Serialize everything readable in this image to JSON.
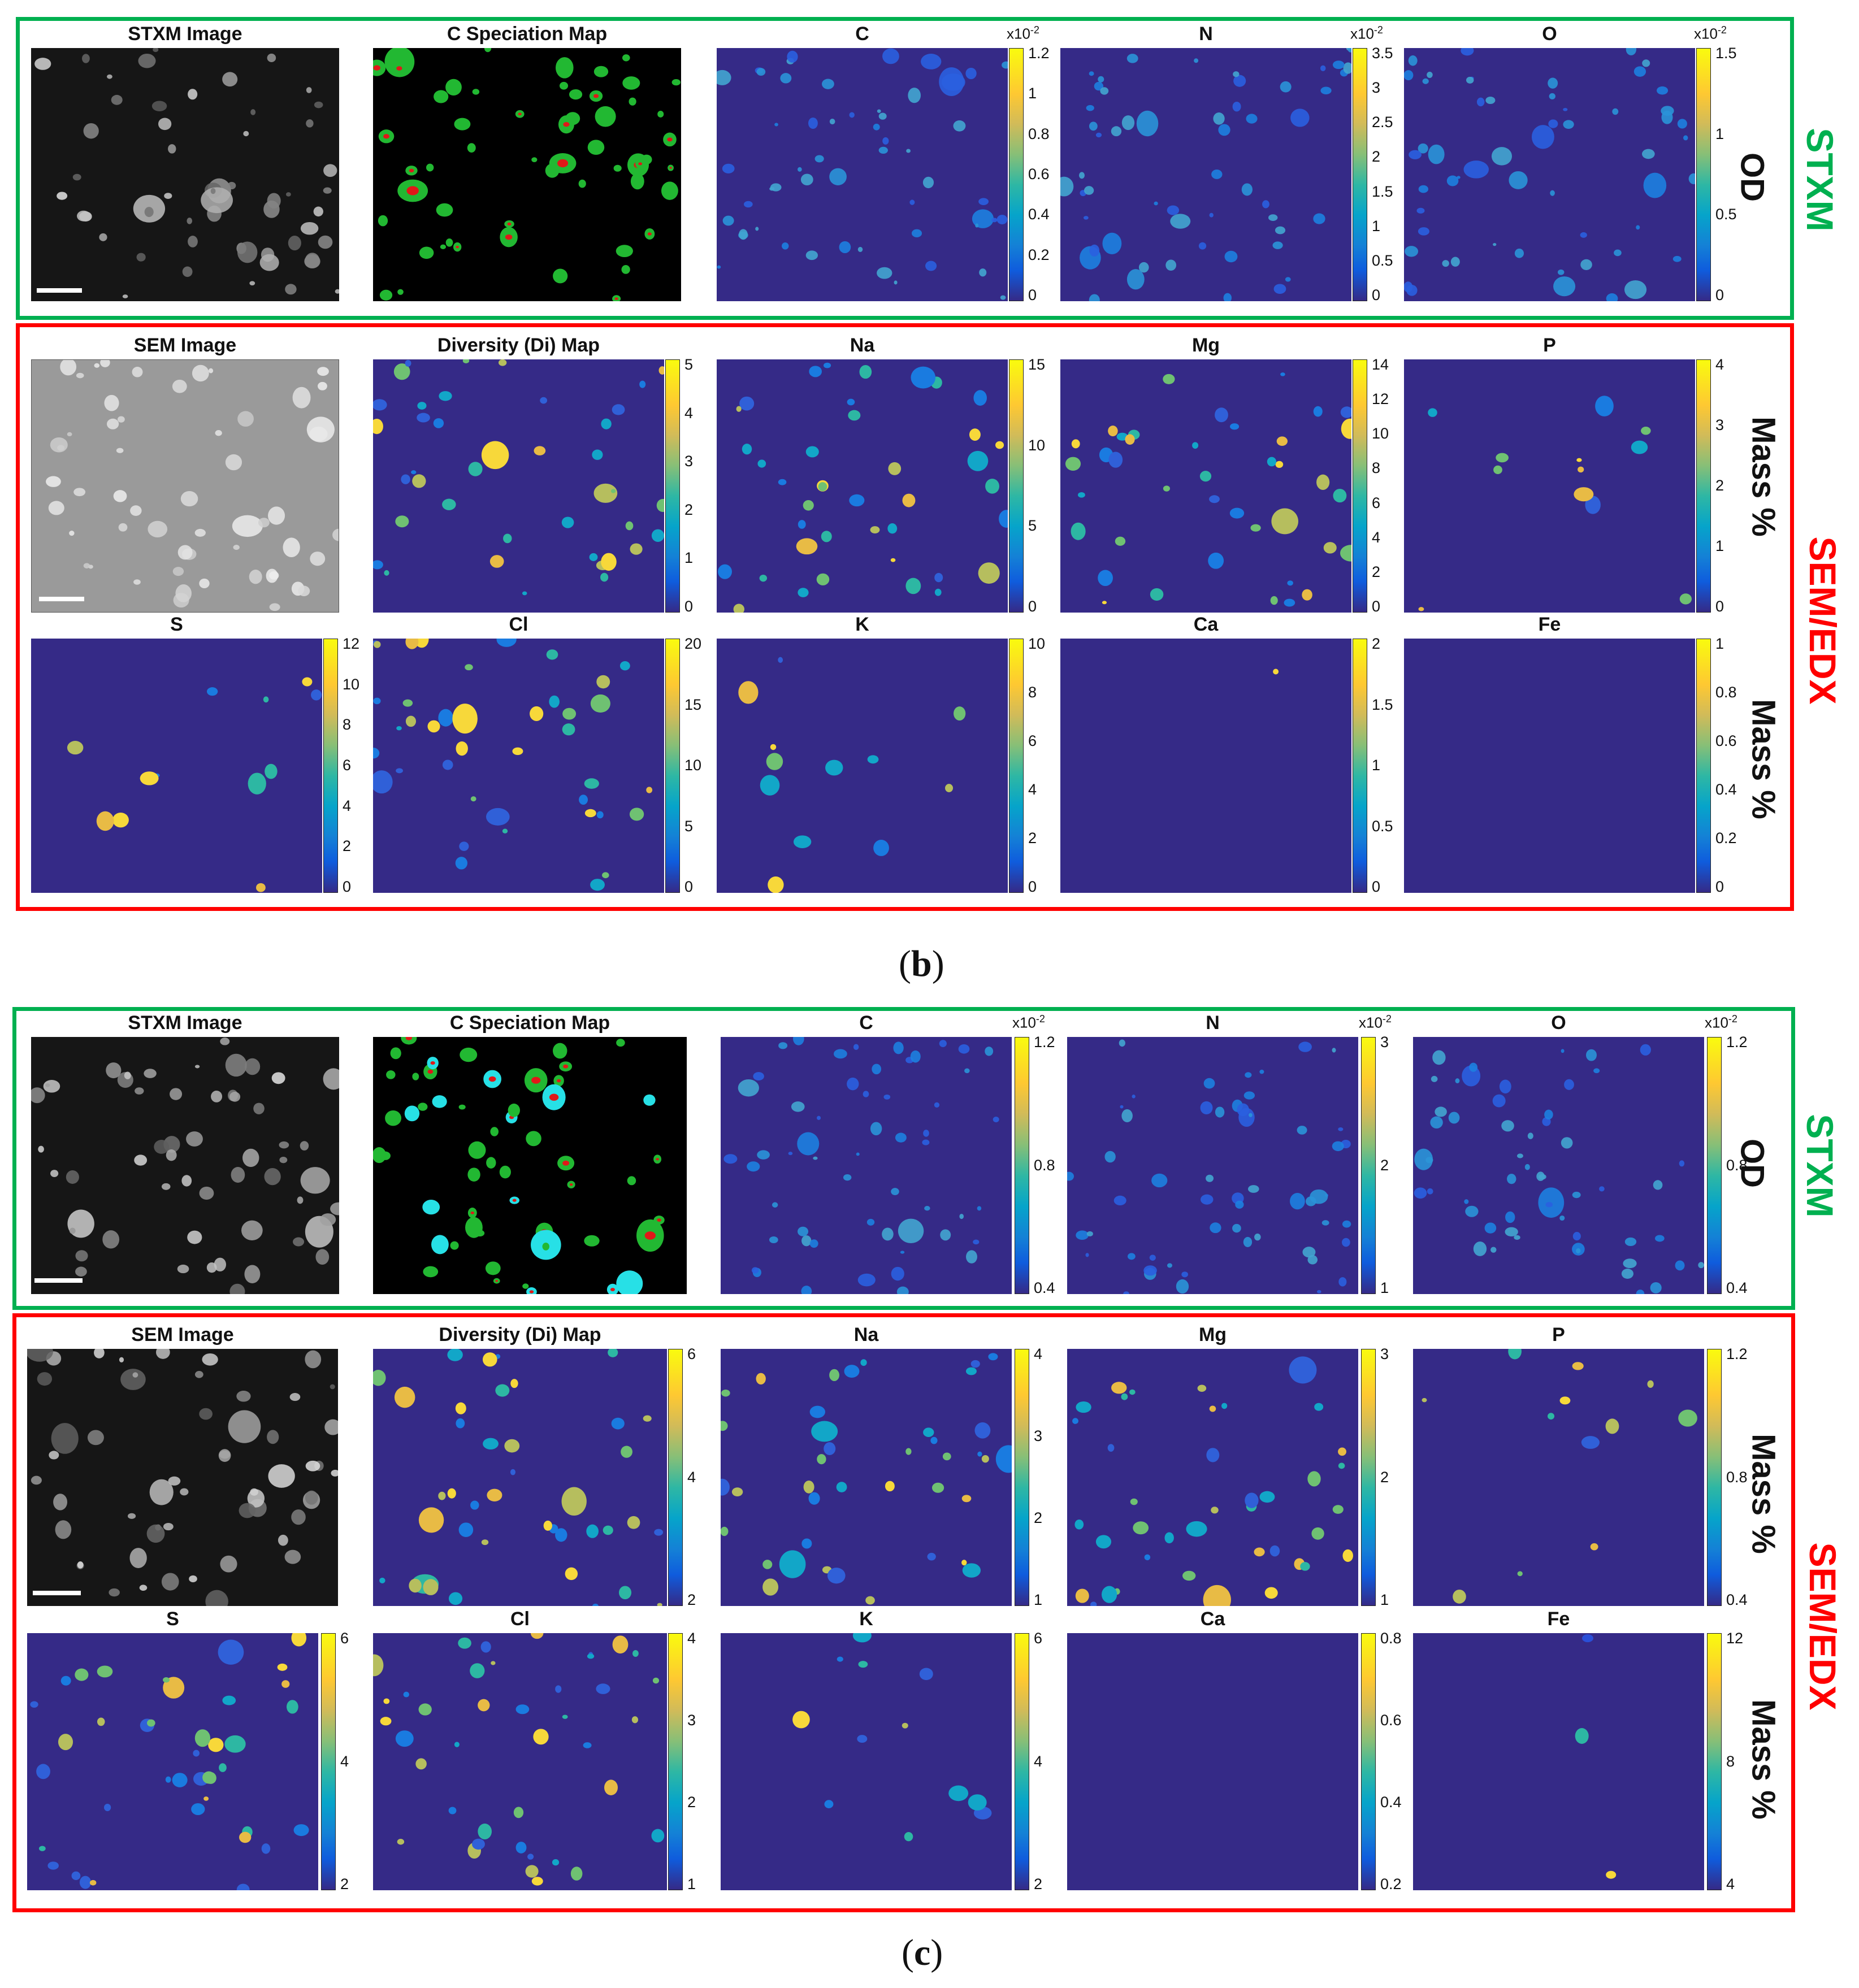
{
  "colors": {
    "stxm_frame": "#00b050",
    "sem_frame": "#ff0000",
    "map_background": "#352a87",
    "speciation_background": "#000000"
  },
  "figure_b": {
    "caption": {
      "open": "(",
      "letter": "b",
      "close": ")"
    },
    "stxm_label": "STXM",
    "od_label": "OD",
    "sem_label": "SEM/EDX",
    "mass_label_top": "Mass %",
    "mass_label_bottom": "Mass %",
    "stxm_titles": {
      "stxm_image": "STXM Image",
      "c_speciation": "C Speciation Map",
      "c": "C",
      "n": "N",
      "o": "O"
    },
    "sem_titles": {
      "sem_image": "SEM Image",
      "diversity": "Diversity (Di) Map",
      "na": "Na",
      "mg": "Mg",
      "p": "P"
    },
    "edx_titles": {
      "s": "S",
      "cl": "Cl",
      "k": "K",
      "ca": "Ca",
      "fe": "Fe"
    },
    "colorbars": {
      "c": {
        "sci_base": "x10",
        "sci_exp": "-2",
        "ticks": [
          "1.2",
          "1",
          "0.8",
          "0.6",
          "0.4",
          "0.2",
          "0"
        ]
      },
      "n": {
        "sci_base": "x10",
        "sci_exp": "-2",
        "ticks": [
          "3.5",
          "3",
          "2.5",
          "2",
          "1.5",
          "1",
          "0.5",
          "0"
        ]
      },
      "o": {
        "sci_base": "x10",
        "sci_exp": "-2",
        "ticks": [
          "1.5",
          "1",
          "0.5",
          "0"
        ]
      },
      "diversity": {
        "ticks": [
          "5",
          "4",
          "3",
          "2",
          "1",
          "0"
        ]
      },
      "na": {
        "ticks": [
          "15",
          "10",
          "5",
          "0"
        ]
      },
      "mg": {
        "ticks": [
          "14",
          "12",
          "10",
          "8",
          "6",
          "4",
          "2",
          "0"
        ]
      },
      "p": {
        "ticks": [
          "4",
          "3",
          "2",
          "1",
          "0"
        ]
      },
      "s": {
        "ticks": [
          "12",
          "10",
          "8",
          "6",
          "4",
          "2",
          "0"
        ]
      },
      "cl": {
        "ticks": [
          "20",
          "15",
          "10",
          "5",
          "0"
        ]
      },
      "k": {
        "ticks": [
          "10",
          "8",
          "6",
          "4",
          "2",
          "0"
        ]
      },
      "ca": {
        "ticks": [
          "2",
          "1.5",
          "1",
          "0.5",
          "0"
        ]
      },
      "fe": {
        "ticks": [
          "1",
          "0.8",
          "0.6",
          "0.4",
          "0.2",
          "0"
        ]
      }
    }
  },
  "figure_c": {
    "caption": {
      "open": "(",
      "letter": "c",
      "close": ")"
    },
    "stxm_label": "STXM",
    "od_label": "OD",
    "sem_label": "SEM/EDX",
    "mass_label_top": "Mass %",
    "mass_label_bottom": "Mass %",
    "stxm_titles": {
      "stxm_image": "STXM Image",
      "c_speciation": "C Speciation Map",
      "c": "C",
      "n": "N",
      "o": "O"
    },
    "sem_titles": {
      "sem_image": "SEM Image",
      "diversity": "Diversity (Di) Map",
      "na": "Na",
      "mg": "Mg",
      "p": "P"
    },
    "edx_titles": {
      "s": "S",
      "cl": "Cl",
      "k": "K",
      "ca": "Ca",
      "fe": "Fe"
    },
    "colorbars": {
      "c": {
        "sci_base": "x10",
        "sci_exp": "-2",
        "ticks": [
          "1.2",
          "0.8",
          "0.4"
        ]
      },
      "n": {
        "sci_base": "x10",
        "sci_exp": "-2",
        "ticks": [
          "3",
          "2",
          "1"
        ]
      },
      "o": {
        "sci_base": "x10",
        "sci_exp": "-2",
        "ticks": [
          "1.2",
          "0.8",
          "0.4"
        ]
      },
      "diversity": {
        "ticks": [
          "6",
          "4",
          "2"
        ]
      },
      "na": {
        "ticks": [
          "4",
          "3",
          "2",
          "1"
        ]
      },
      "mg": {
        "ticks": [
          "3",
          "2",
          "1"
        ]
      },
      "p": {
        "ticks": [
          "1.2",
          "0.8",
          "0.4"
        ]
      },
      "s": {
        "ticks": [
          "6",
          "4",
          "2"
        ]
      },
      "cl": {
        "ticks": [
          "4",
          "3",
          "2",
          "1"
        ]
      },
      "k": {
        "ticks": [
          "6",
          "4",
          "2"
        ]
      },
      "ca": {
        "ticks": [
          "0.8",
          "0.6",
          "0.4",
          "0.2"
        ]
      },
      "fe": {
        "ticks": [
          "12",
          "8",
          "4"
        ]
      }
    }
  }
}
